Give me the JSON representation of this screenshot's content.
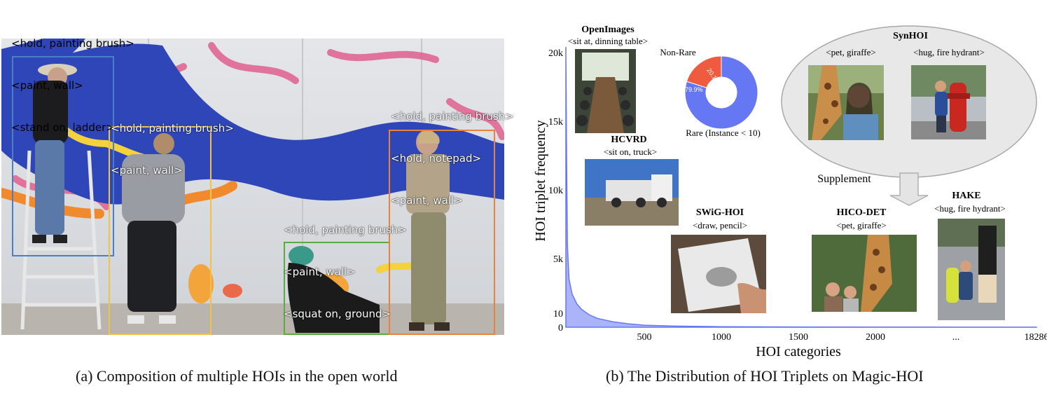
{
  "panel_a": {
    "caption": "(a) Composition of multiple HOIs in the open world",
    "label_groups": {
      "person1": [
        "<hold, painting brush>",
        "<paint, wall>",
        "<stand on, ladder>"
      ],
      "person2": [
        "<hold, painting brush>",
        "<paint, wall>"
      ],
      "person3": [
        "<hold, painting brush>",
        "<paint, wall>",
        "<squat on, ground>"
      ],
      "person4": [
        "<hold, painting brush>",
        "<hold, notepad>",
        "<paint, wall>"
      ]
    },
    "box_colors": {
      "person1": "#4a7fc8",
      "person2": "#f0c24a",
      "person3": "#5aac3e",
      "person4": "#e9823a"
    }
  },
  "panel_b": {
    "caption": "(b) The Distribution of HOI Triplets on Magic-HOI",
    "datasets": {
      "openimages": {
        "name": "OpenImages",
        "example": "<sit at, dinning table>"
      },
      "hcvrd": {
        "name": "HCVRD",
        "example": "<sit on, truck>"
      },
      "swig": {
        "name": "SWiG-HOI",
        "example": "<draw, pencil>"
      },
      "hico": {
        "name": "HICO-DET",
        "example": "<pet, giraffe>"
      },
      "hake": {
        "name": "HAKE",
        "example": "<hug, fire hydrant>"
      },
      "synhoi": {
        "name": "SynHOI",
        "examples": [
          "<pet, giraffe>",
          "<hug, fire hydrant>"
        ]
      }
    },
    "supplement_label": "Supplement",
    "donut": {
      "nonrare_label": "Non-Rare",
      "rare_label": "Rare (Instance < 10)",
      "nonrare_pct_text": "20.1%",
      "rare_pct_text": "79.9%",
      "nonrare_color": "#ef5b3e",
      "rare_color": "#6677f4"
    }
  },
  "chart_data": {
    "type": "area",
    "xlabel": "HOI categories",
    "ylabel": "HOI triplet frequency",
    "x_ticks": [
      "500",
      "1000",
      "1500",
      "2000",
      "...",
      "18286"
    ],
    "y_ticks": [
      "0",
      "10",
      "5k",
      "10k",
      "15k",
      "20k"
    ],
    "ylim": [
      0,
      20000
    ],
    "xlim": [
      0,
      18286
    ],
    "series_color": "#6677f4",
    "x": [
      0,
      5,
      10,
      20,
      40,
      70,
      100,
      150,
      200,
      300,
      400,
      500,
      700,
      1000,
      1500,
      2000,
      18286
    ],
    "values": [
      20000,
      12000,
      6000,
      3500,
      2400,
      1700,
      1300,
      900,
      650,
      400,
      250,
      150,
      80,
      40,
      20,
      12,
      5
    ]
  }
}
